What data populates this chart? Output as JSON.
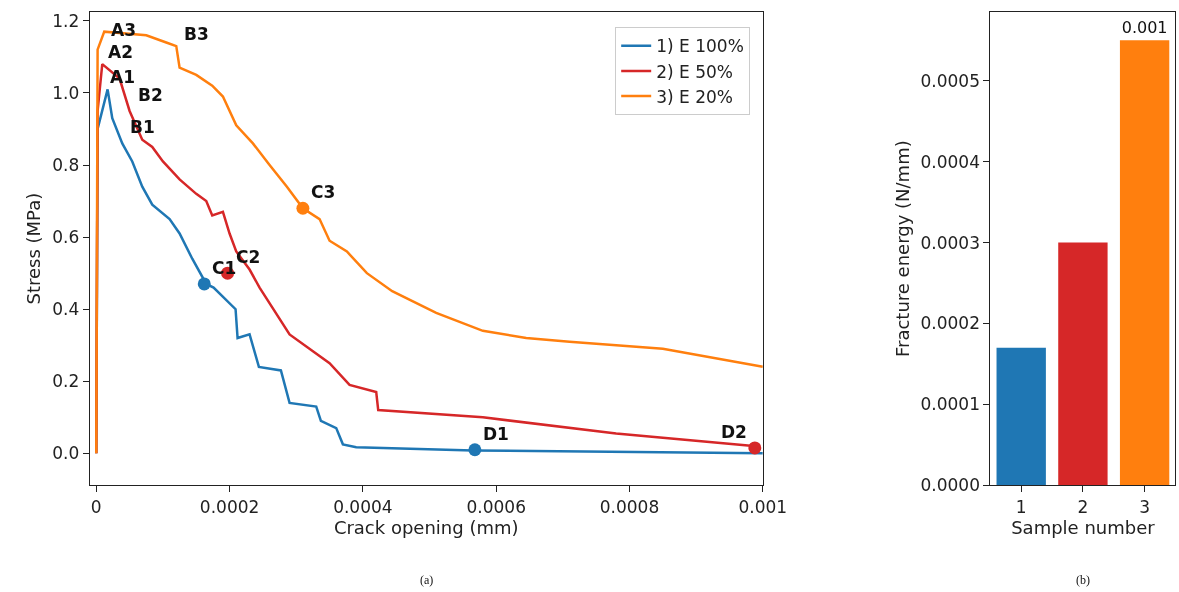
{
  "chart_data": [
    {
      "type": "line",
      "xlabel": "Crack opening (mm)",
      "ylabel": "Stress (MPa)",
      "xlim": [
        -1e-05,
        0.001
      ],
      "xticks": [
        0,
        0.0002,
        0.0004,
        0.0006,
        0.0008,
        0.001
      ],
      "ylim": [
        -0.089,
        1.225
      ],
      "yticks": [
        {
          "value": 0,
          "label": "0.0"
        },
        {
          "value": 0.2,
          "label": "0.2"
        },
        {
          "value": 0.4,
          "label": "0.4"
        },
        {
          "value": 0.6,
          "label": "0.6"
        },
        {
          "value": 0.8,
          "label": "0.8"
        },
        {
          "value": 1.0,
          "label": "1.0"
        },
        {
          "value": 1.2,
          "label": "1.2"
        }
      ],
      "legend": "top right",
      "line_style": "solid",
      "series": [
        {
          "name": "1) E 100%",
          "color": "#1f77b4",
          "x": [
            0,
            2e-06,
            1.7e-05,
            2.4e-05,
            3.9e-05,
            5.4e-05,
            6.9e-05,
            8.4e-05,
            0.00011,
            0.000125,
            0.000144,
            0.000165,
            0.000176,
            0.000209,
            0.000212,
            0.00023,
            0.000244,
            0.000277,
            0.00029,
            0.00033,
            0.000337,
            0.00036,
            0.00037,
            0.00039,
            0.000565,
            0.001
          ],
          "values": [
            0,
            0.9,
            1.01,
            0.93,
            0.86,
            0.81,
            0.74,
            0.69,
            0.65,
            0.61,
            0.54,
            0.47,
            0.46,
            0.4,
            0.32,
            0.33,
            0.24,
            0.23,
            0.14,
            0.13,
            0.09,
            0.07,
            0.025,
            0.017,
            0.008,
            0.0
          ]
        },
        {
          "name": "2) E 50%",
          "color": "#d62728",
          "x": [
            0,
            2e-06,
            9e-06,
            3.5e-05,
            5e-05,
            6.9e-05,
            8.4e-05,
            0.0001,
            0.000125,
            0.00015,
            0.000165,
            0.000174,
            0.00019,
            0.0002,
            0.00021,
            0.00023,
            0.000245,
            0.00029,
            0.00035,
            0.00038,
            0.00042,
            0.000423,
            0.00058,
            0.00078,
            0.00099
          ],
          "values": [
            0,
            0.95,
            1.08,
            1.04,
            0.95,
            0.87,
            0.85,
            0.81,
            0.76,
            0.72,
            0.7,
            0.66,
            0.67,
            0.61,
            0.56,
            0.51,
            0.46,
            0.33,
            0.25,
            0.19,
            0.17,
            0.12,
            0.1,
            0.055,
            0.02
          ]
        },
        {
          "name": "3) E 20%",
          "color": "#ff7f0e",
          "x": [
            0,
            2e-06,
            1.2e-05,
            7.5e-05,
            0.000105,
            0.00012,
            0.000125,
            0.00015,
            0.000174,
            0.00019,
            0.00021,
            0.000235,
            0.00026,
            0.000286,
            0.00031,
            0.000335,
            0.00035,
            0.000376,
            0.000406,
            0.000444,
            0.00051,
            0.00058,
            0.000645,
            0.00071,
            0.00085,
            0.001
          ],
          "values": [
            0,
            1.12,
            1.17,
            1.16,
            1.14,
            1.13,
            1.07,
            1.05,
            1.02,
            0.99,
            0.91,
            0.86,
            0.8,
            0.74,
            0.68,
            0.65,
            0.59,
            0.56,
            0.5,
            0.45,
            0.39,
            0.34,
            0.32,
            0.31,
            0.29,
            0.24
          ]
        },
        {
          "type": "scatter",
          "color": "#1f77b4",
          "x": [
            0.000162,
            0.000568
          ],
          "values": [
            0.47,
            0.01
          ]
        },
        {
          "type": "scatter",
          "color": "#d62728",
          "x": [
            0.000197,
            0.000988
          ],
          "values": [
            0.5,
            0.015
          ]
        },
        {
          "type": "scatter",
          "color": "#ff7f0e",
          "x": [
            0.00031
          ],
          "values": [
            0.68
          ]
        }
      ],
      "annotations": [
        {
          "text": "A1",
          "x": 9e-06,
          "y": 1.0
        },
        {
          "text": "B1",
          "x": 3.9e-05,
          "y": 0.86
        },
        {
          "text": "C1",
          "x": 0.000162,
          "y": 0.47
        },
        {
          "text": "D1",
          "x": 0.000568,
          "y": 0.01
        },
        {
          "text": "A2",
          "x": 6e-06,
          "y": 1.07
        },
        {
          "text": "B2",
          "x": 5e-05,
          "y": 0.95
        },
        {
          "text": "C2",
          "x": 0.000197,
          "y": 0.5
        },
        {
          "text": "D2",
          "x": 0.000988,
          "y": 0.015
        },
        {
          "text": "A3",
          "x": 1e-05,
          "y": 1.13
        },
        {
          "text": "B3",
          "x": 0.00012,
          "y": 1.12
        },
        {
          "text": "C3",
          "x": 0.00031,
          "y": 0.68
        },
        "(a)"
      ]
    },
    {
      "type": "bar",
      "xlabel": "Sample number",
      "ylabel": "Fracture energy (N/mm)",
      "categories": [
        "1",
        "2",
        "3"
      ],
      "values": [
        0.00017,
        0.0003,
        0.00055
      ],
      "colors": [
        "#1f77b4",
        "#d62728",
        "#ff7f0e"
      ],
      "ylim": [
        0,
        0.000585
      ],
      "yticks": [
        {
          "value": 0,
          "label": "0.0000"
        },
        {
          "value": 0.0001,
          "label": "0.0001"
        },
        {
          "value": 0.0002,
          "label": "0.0002"
        },
        {
          "value": 0.0003,
          "label": "0.0003"
        },
        {
          "value": 0.0004,
          "label": "0.0004"
        },
        {
          "value": 0.0005,
          "label": "0.0005"
        }
      ],
      "value_labels": [
        null,
        null,
        "0.001"
      ],
      "annotations": [
        "(b)"
      ]
    }
  ]
}
